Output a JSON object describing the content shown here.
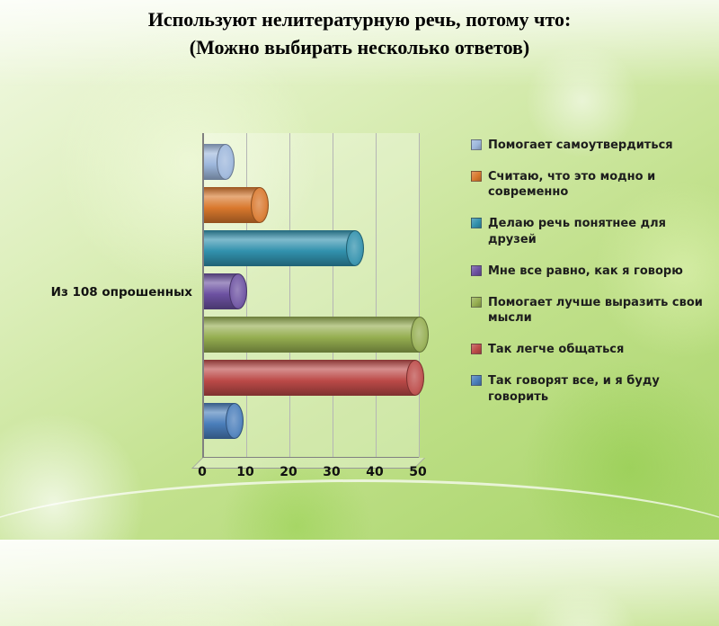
{
  "slide": {
    "title_line1": "Используют нелитературную речь, потому что:",
    "title_line2": "(Можно выбирать несколько ответов)"
  },
  "chart_data": {
    "type": "bar",
    "orientation": "horizontal",
    "title": "",
    "category_label": "Из 108 опрошенных",
    "xlim": [
      0,
      50
    ],
    "x_ticks": [
      0,
      10,
      20,
      30,
      40,
      50
    ],
    "grid": true,
    "legend_position": "right",
    "series": [
      {
        "name": "Помогает самоутвердиться",
        "value": 5,
        "color": "#9db7dc"
      },
      {
        "name": "Считаю, что это модно и современно",
        "value": 13,
        "color": "#d9782d"
      },
      {
        "name": "Делаю речь понятнее для друзей",
        "value": 35,
        "color": "#3191ad"
      },
      {
        "name": "Мне все равно, как я говорю",
        "value": 8,
        "color": "#6c51a1"
      },
      {
        "name": "Помогает лучше выразить свои мысли",
        "value": 50,
        "color": "#95ae50"
      },
      {
        "name": "Так легче общаться",
        "value": 49,
        "color": "#bc4a48"
      },
      {
        "name": "Так говорят все, и я буду говорить",
        "value": 7,
        "color": "#4a7ebb"
      }
    ]
  }
}
